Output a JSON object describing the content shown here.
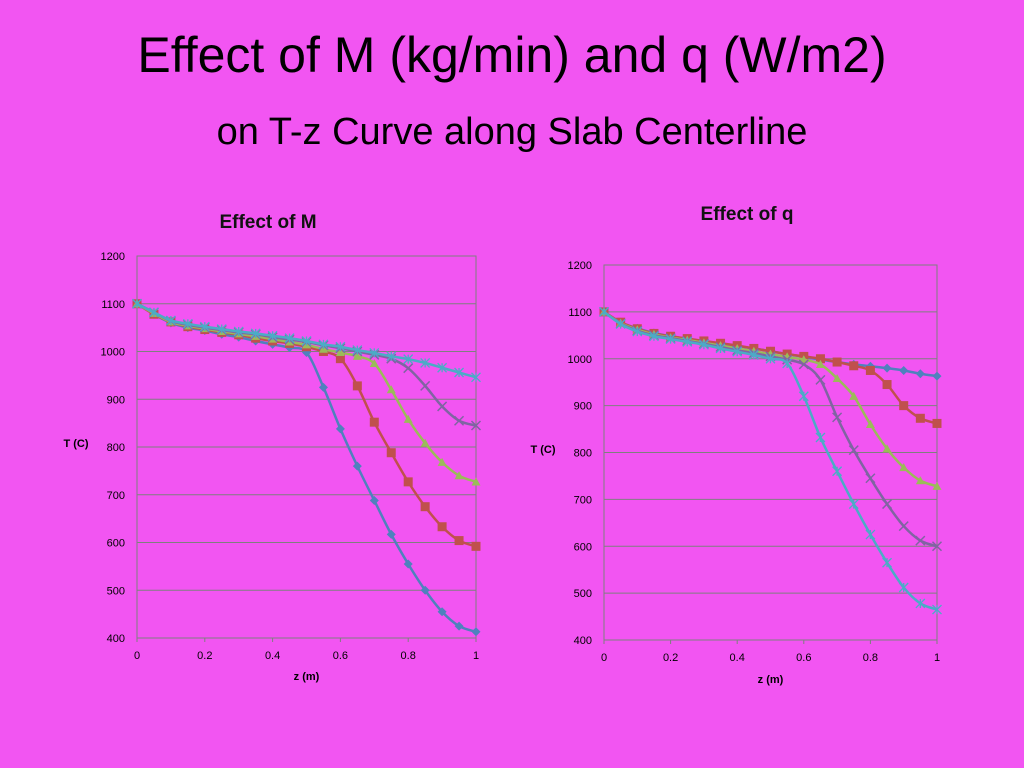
{
  "title": "Effect of M (kg/min) and q (W/m2)",
  "subtitle": "on T-z Curve along Slab Centerline",
  "chart_data": [
    {
      "type": "line",
      "title": "Effect of M",
      "xlabel": "z (m)",
      "ylabel": "T (C)",
      "xlim": [
        0,
        1
      ],
      "ylim": [
        400,
        1200
      ],
      "xticks": [
        "0",
        "0.2",
        "0.4",
        "0.6",
        "0.8",
        "1"
      ],
      "yticks": [
        "400",
        "500",
        "600",
        "700",
        "800",
        "900",
        "1000",
        "1100",
        "1200"
      ],
      "grid": "horizontal",
      "x": [
        0,
        0.05,
        0.1,
        0.15,
        0.2,
        0.25,
        0.3,
        0.35,
        0.4,
        0.45,
        0.5,
        0.55,
        0.6,
        0.65,
        0.7,
        0.75,
        0.8,
        0.85,
        0.9,
        0.95,
        1.0
      ],
      "series": [
        {
          "color": "#4f81bd",
          "marker": "diamond",
          "values": [
            1100,
            1078,
            1060,
            1050,
            1044,
            1036,
            1030,
            1022,
            1015,
            1008,
            998,
            925,
            838,
            760,
            688,
            617,
            555,
            500,
            455,
            425,
            413
          ]
        },
        {
          "color": "#c0504d",
          "marker": "square",
          "values": [
            1100,
            1078,
            1062,
            1052,
            1046,
            1040,
            1035,
            1028,
            1022,
            1017,
            1010,
            1000,
            985,
            928,
            852,
            788,
            727,
            675,
            633,
            604,
            592
          ]
        },
        {
          "color": "#9bbb59",
          "marker": "triangle",
          "values": [
            1100,
            1080,
            1062,
            1054,
            1048,
            1042,
            1037,
            1032,
            1026,
            1020,
            1014,
            1005,
            998,
            990,
            975,
            920,
            858,
            808,
            768,
            740,
            727
          ]
        },
        {
          "color": "#8064a2",
          "marker": "x",
          "values": [
            1100,
            1082,
            1064,
            1056,
            1050,
            1045,
            1040,
            1036,
            1030,
            1025,
            1020,
            1013,
            1007,
            1000,
            993,
            985,
            965,
            928,
            885,
            855,
            845
          ]
        },
        {
          "color": "#4bacc6",
          "marker": "star",
          "values": [
            1100,
            1082,
            1065,
            1058,
            1052,
            1047,
            1042,
            1038,
            1033,
            1028,
            1022,
            1015,
            1010,
            1003,
            997,
            990,
            984,
            976,
            966,
            956,
            946
          ]
        }
      ]
    },
    {
      "type": "line",
      "title": "Effect of q",
      "xlabel": "z (m)",
      "ylabel": "T (C)",
      "xlim": [
        0,
        1
      ],
      "ylim": [
        400,
        1200
      ],
      "xticks": [
        "0",
        "0.2",
        "0.4",
        "0.6",
        "0.8",
        "1"
      ],
      "yticks": [
        "400",
        "500",
        "600",
        "700",
        "800",
        "900",
        "1000",
        "1100",
        "1200"
      ],
      "grid": "horizontal",
      "x": [
        0,
        0.05,
        0.1,
        0.15,
        0.2,
        0.25,
        0.3,
        0.35,
        0.4,
        0.45,
        0.5,
        0.55,
        0.6,
        0.65,
        0.7,
        0.75,
        0.8,
        0.85,
        0.9,
        0.95,
        1.0
      ],
      "series": [
        {
          "color": "#4f81bd",
          "marker": "diamond",
          "values": [
            1100,
            1078,
            1065,
            1055,
            1048,
            1042,
            1037,
            1032,
            1027,
            1022,
            1016,
            1010,
            1004,
            998,
            993,
            988,
            984,
            980,
            975,
            968,
            963
          ]
        },
        {
          "color": "#c0504d",
          "marker": "square",
          "values": [
            1100,
            1078,
            1064,
            1054,
            1048,
            1043,
            1038,
            1033,
            1028,
            1022,
            1016,
            1010,
            1005,
            1000,
            993,
            985,
            975,
            945,
            900,
            873,
            862
          ]
        },
        {
          "color": "#9bbb59",
          "marker": "triangle",
          "values": [
            1100,
            1076,
            1062,
            1052,
            1045,
            1040,
            1034,
            1028,
            1022,
            1016,
            1010,
            1004,
            998,
            988,
            958,
            920,
            860,
            808,
            768,
            740,
            728
          ]
        },
        {
          "color": "#8064a2",
          "marker": "x",
          "values": [
            1100,
            1075,
            1060,
            1050,
            1044,
            1038,
            1032,
            1025,
            1018,
            1012,
            1005,
            998,
            988,
            955,
            875,
            805,
            745,
            690,
            643,
            612,
            600
          ]
        },
        {
          "color": "#4bacc6",
          "marker": "star",
          "values": [
            1100,
            1074,
            1058,
            1048,
            1042,
            1036,
            1030,
            1022,
            1015,
            1008,
            1000,
            990,
            920,
            832,
            760,
            690,
            625,
            565,
            512,
            478,
            465
          ]
        }
      ]
    }
  ]
}
